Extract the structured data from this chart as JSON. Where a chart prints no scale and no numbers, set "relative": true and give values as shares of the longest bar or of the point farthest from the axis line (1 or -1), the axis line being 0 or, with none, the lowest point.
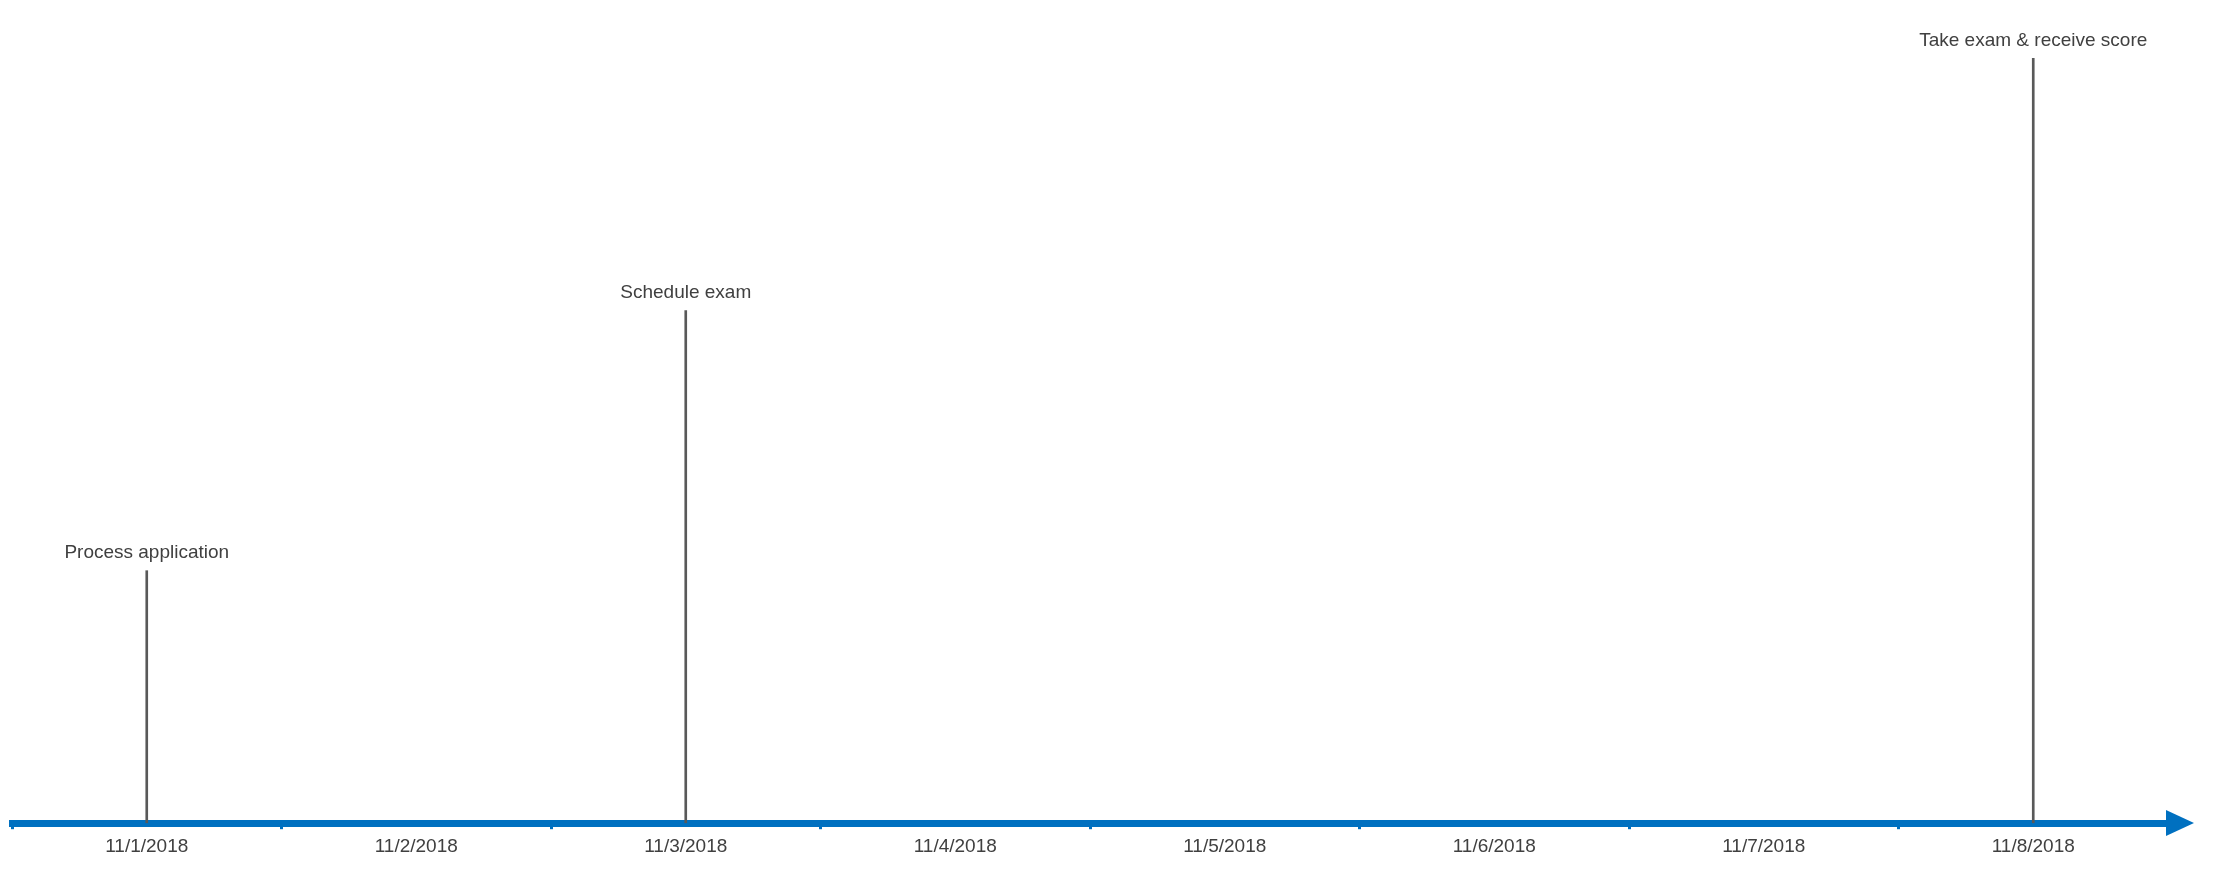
{
  "chart_data": {
    "type": "bar",
    "relative": true,
    "categories": [
      "11/1/2018",
      "11/2/2018",
      "11/3/2018",
      "11/4/2018",
      "11/5/2018",
      "11/6/2018",
      "11/7/2018",
      "11/8/2018"
    ],
    "series": [
      {
        "color": "#595959",
        "values": [
          0.33,
          null,
          0.67,
          null,
          null,
          null,
          null,
          1
        ]
      }
    ],
    "annotations": [
      {
        "text": "Process application",
        "x": "11/1/2018",
        "y": 0.33
      },
      {
        "text": "Schedule exam",
        "x": "11/3/2018",
        "y": 0.67
      },
      {
        "text": "Take exam & receive score",
        "x": "11/8/2018",
        "y": 1
      }
    ]
  }
}
